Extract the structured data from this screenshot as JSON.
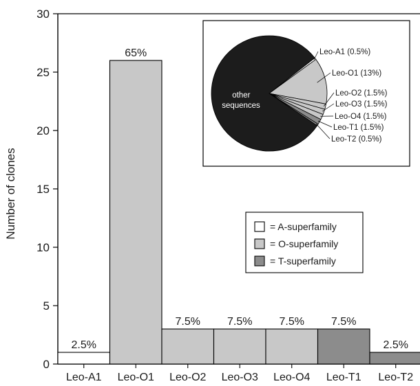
{
  "chart_data": [
    {
      "type": "bar",
      "ylabel": "Number of clones",
      "ylim": [
        0,
        30
      ],
      "yticks": [
        0,
        5,
        10,
        15,
        20,
        25,
        30
      ],
      "categories": [
        "Leo-A1",
        "Leo-O1",
        "Leo-O2",
        "Leo-O3",
        "Leo-O4",
        "Leo-T1",
        "Leo-T2"
      ],
      "values": [
        1,
        26,
        3,
        3,
        3,
        3,
        1
      ],
      "data_labels": [
        "2.5%",
        "65%",
        "7.5%",
        "7.5%",
        "7.5%",
        "7.5%",
        "2.5%"
      ],
      "superfamily": [
        "A",
        "O",
        "O",
        "O",
        "O",
        "T",
        "T"
      ],
      "grid": false,
      "legend": {
        "placement": "center-right",
        "entries": [
          {
            "key": "A",
            "label": "= A-superfamily",
            "color": "#ffffff"
          },
          {
            "key": "O",
            "label": "= O-superfamily",
            "color": "#c8c8c8"
          },
          {
            "key": "T",
            "label": "= T-superfamily",
            "color": "#8c8c8c"
          }
        ]
      }
    },
    {
      "type": "pie",
      "placement": "top-right inset",
      "slices": [
        {
          "label": "Leo-A1 (0.5%)",
          "value": 0.5,
          "color": "#ffffff"
        },
        {
          "label": "Leo-O1 (13%)",
          "value": 13,
          "color": "#c8c8c8"
        },
        {
          "label": "Leo-O2 (1.5%)",
          "value": 1.5,
          "color": "#c8c8c8"
        },
        {
          "label": "Leo-O3 (1.5%)",
          "value": 1.5,
          "color": "#c8c8c8"
        },
        {
          "label": "Leo-O4 (1.5%)",
          "value": 1.5,
          "color": "#c8c8c8"
        },
        {
          "label": "Leo-T1 (1.5%)",
          "value": 1.5,
          "color": "#8c8c8c"
        },
        {
          "label": "Leo-T2 (0.5%)",
          "value": 0.5,
          "color": "#8c8c8c"
        },
        {
          "label": "other sequences",
          "value": 80,
          "color": "#1c1c1c"
        }
      ],
      "inner_label": [
        "other",
        "sequences"
      ]
    }
  ]
}
